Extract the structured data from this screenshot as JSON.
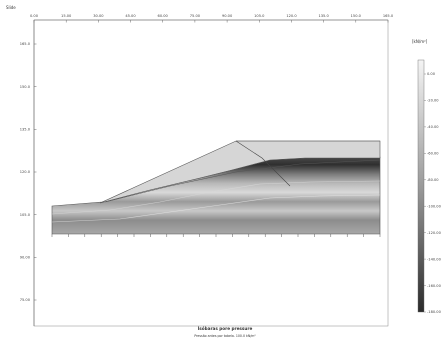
{
  "app_label": "Slide",
  "chart_data": {
    "type": "heatmap",
    "title": "Isóbaras pore pressure",
    "subtitle": "Pressão antes por tabela. 100.0 kN/m²",
    "xlim": [
      0,
      165
    ],
    "ylim": [
      0,
      165
    ],
    "x_ticks": [
      "0.00",
      "15.00",
      "30.00",
      "45.00",
      "60.00",
      "75.00",
      "90.00",
      "105.0",
      "120.0",
      "135.0",
      "150.0",
      "165.0"
    ],
    "y_ticks": [
      "75.00",
      "90.00",
      "105.0",
      "120.0",
      "135.0",
      "150.0",
      "165.0"
    ],
    "legend": {
      "title": "[kN/m²]",
      "placement": "right",
      "labels": [
        "0.00",
        "-20.00",
        "-40.00",
        "-60.00",
        "-80.00",
        "-100.00",
        "-120.00",
        "-140.00",
        "-160.00",
        "-180.00"
      ]
    },
    "grid": false,
    "colors": {
      "band_light": "#efefef",
      "band_dark": "#3a3a3a",
      "embankment": "#d6d6d6",
      "outline": "#555555"
    }
  }
}
